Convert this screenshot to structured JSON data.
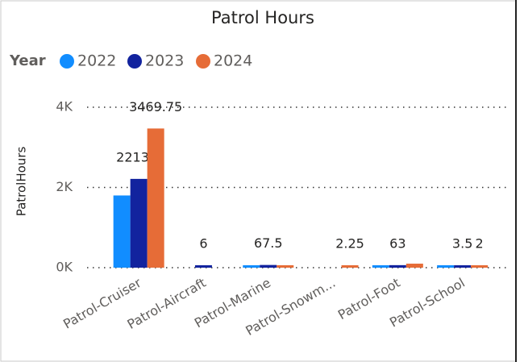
{
  "chart_data": {
    "type": "bar",
    "title": "Patrol Hours",
    "legend_title": "Year",
    "y_label": "PatrolHours",
    "categories": [
      "Patrol-Cruiser",
      "Patrol-Aircraft",
      "Patrol-Marine",
      "Patrol-Snowm...",
      "Patrol-Foot",
      "Patrol-School"
    ],
    "series": [
      {
        "name": "2022",
        "color": "#118dff",
        "values": [
          1800,
          null,
          40,
          null,
          55,
          5
        ],
        "value_labels": [
          null,
          null,
          null,
          null,
          null,
          null
        ]
      },
      {
        "name": "2023",
        "color": "#12239e",
        "values": [
          2213.5,
          6,
          67.5,
          null,
          63,
          3.5
        ],
        "value_labels": [
          "2213.5",
          "6",
          "67.5",
          null,
          "63",
          "3.5"
        ]
      },
      {
        "name": "2024",
        "color": "#e66c37",
        "values": [
          3469.75,
          null,
          30,
          2.25,
          100,
          2
        ],
        "value_labels": [
          "3469.75",
          null,
          null,
          "2.25",
          null,
          "2"
        ]
      }
    ],
    "ylim": [
      0,
      4000
    ],
    "yticks": [
      {
        "value": 0,
        "label": "0K"
      },
      {
        "value": 2000,
        "label": "2K"
      },
      {
        "value": 4000,
        "label": "4K"
      }
    ],
    "grid": true,
    "legend": "top-left"
  }
}
